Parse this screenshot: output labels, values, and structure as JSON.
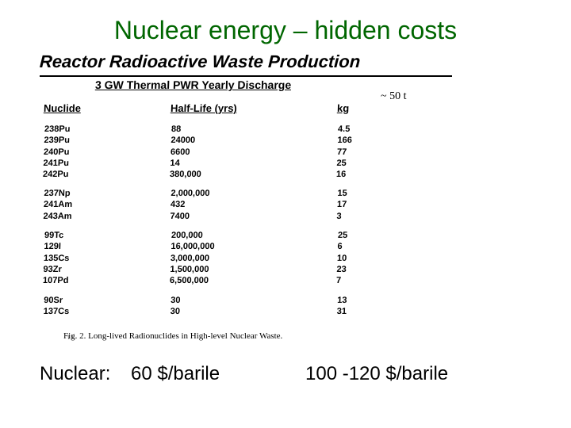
{
  "title": "Nuclear energy – hidden costs",
  "section_title": "Reactor Radioactive Waste Production",
  "subtitle": "3 GW Thermal PWR Yearly Discharge",
  "annot": "~ 50 t",
  "columns": {
    "a": "Nuclide",
    "b": "Half-Life (yrs)",
    "c": "kg"
  },
  "groups": [
    {
      "rows": [
        {
          "a": "238Pu",
          "b": "88",
          "c": "4.5"
        },
        {
          "a": "239Pu",
          "b": "24000",
          "c": "166"
        },
        {
          "a": "240Pu",
          "b": "6600",
          "c": "77"
        },
        {
          "a": "241Pu",
          "b": "14",
          "c": "25"
        },
        {
          "a": "242Pu",
          "b": "380,000",
          "c": "16"
        }
      ]
    },
    {
      "rows": [
        {
          "a": "237Np",
          "b": "2,000,000",
          "c": "15"
        },
        {
          "a": "241Am",
          "b": "432",
          "c": "17"
        },
        {
          "a": "243Am",
          "b": "7400",
          "c": "3"
        }
      ]
    },
    {
      "rows": [
        {
          "a": "99Tc",
          "b": "200,000",
          "c": "25"
        },
        {
          "a": "129I",
          "b": "16,000,000",
          "c": "6"
        },
        {
          "a": "135Cs",
          "b": "3,000,000",
          "c": "10"
        },
        {
          "a": "93Zr",
          "b": "1,500,000",
          "c": "23"
        },
        {
          "a": "107Pd",
          "b": "6,500,000",
          "c": "7"
        }
      ]
    },
    {
      "rows": [
        {
          "a": "90Sr",
          "b": "30",
          "c": "13"
        },
        {
          "a": "137Cs",
          "b": "30",
          "c": "31"
        }
      ]
    }
  ],
  "caption": "Fig. 2.   Long-lived Radionuclides in High-level Nuclear Waste.",
  "footer": {
    "label": "Nuclear:",
    "v1": "60 $/barile",
    "v2": "100 -120 $/barile"
  }
}
